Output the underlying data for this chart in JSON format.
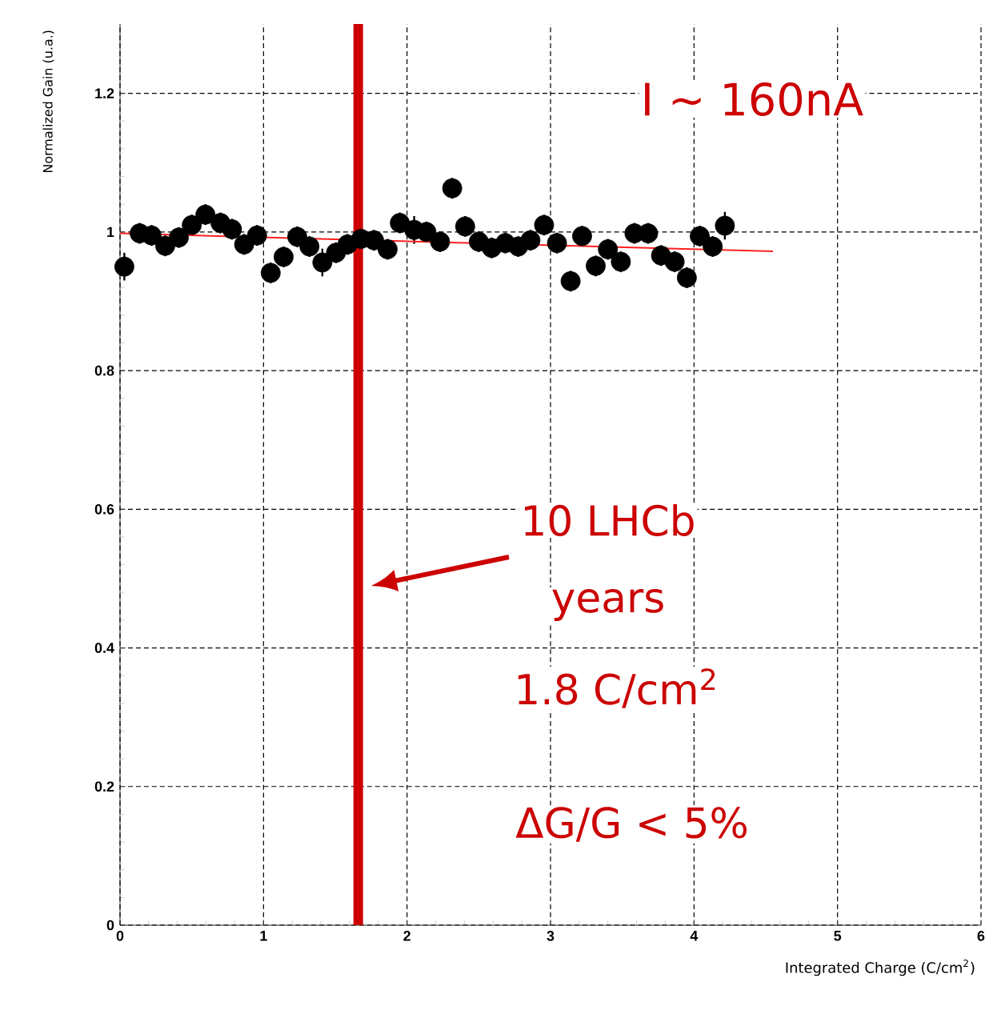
{
  "chart_data": {
    "type": "scatter",
    "xlabel": "Integrated Charge (C/cm$^{2}$)",
    "ylabel": "Normalized Gain (u.a.)",
    "annotations": [
      "I ~ 160nA",
      "10 LHCb",
      "years",
      "1.8 C/cm$^{2}$",
      "ΔG/G < 5%"
    ],
    "series": [
      {
        "color": "#000000",
        "marker": "circle",
        "x": [
          0.03,
          0.137,
          0.22,
          0.315,
          0.41,
          0.5,
          0.595,
          0.7,
          0.78,
          0.865,
          0.955,
          1.05,
          1.14,
          1.235,
          1.32,
          1.41,
          1.505,
          1.585,
          1.68,
          1.77,
          1.865,
          1.95,
          2.05,
          2.135,
          2.23,
          2.315,
          2.405,
          2.5,
          2.59,
          2.685,
          2.775,
          2.86,
          2.955,
          3.045,
          3.14,
          3.22,
          3.315,
          3.4,
          3.49,
          3.585,
          3.68,
          3.77,
          3.865,
          3.95,
          4.04,
          4.13,
          4.215
        ],
        "values": [
          0.95,
          0.998,
          0.995,
          0.98,
          0.992,
          1.01,
          1.025,
          1.013,
          1.004,
          0.982,
          0.995,
          0.941,
          0.964,
          0.993,
          0.979,
          0.956,
          0.97,
          0.982,
          0.99,
          0.988,
          0.975,
          1.013,
          1.003,
          1.0,
          0.986,
          1.063,
          1.008,
          0.986,
          0.977,
          0.984,
          0.979,
          0.988,
          1.01,
          0.984,
          0.929,
          0.994,
          0.951,
          0.975,
          0.957,
          0.998,
          0.998,
          0.966,
          0.957,
          0.934,
          0.994,
          0.979,
          1.009
        ],
        "errors": [
          0.02,
          0.015,
          0.015,
          0.015,
          0.015,
          0.015,
          0.015,
          0.015,
          0.015,
          0.015,
          0.015,
          0.015,
          0.015,
          0.015,
          0.015,
          0.02,
          0.015,
          0.015,
          0.015,
          0.015,
          0.015,
          0.015,
          0.02,
          0.015,
          0.015,
          0.015,
          0.015,
          0.015,
          0.015,
          0.015,
          0.015,
          0.015,
          0.015,
          0.015,
          0.015,
          0.015,
          0.015,
          0.015,
          0.015,
          0.015,
          0.015,
          0.015,
          0.015,
          0.015,
          0.015,
          0.015,
          0.02
        ]
      },
      {
        "type": "line",
        "color": "#ff2020",
        "marker": "none",
        "x": [
          0,
          4.55
        ],
        "values": [
          0.998,
          0.972
        ]
      }
    ],
    "ref_lines": [
      {
        "axis": "x",
        "value": 1.66,
        "color": "#cc0000"
      }
    ],
    "xlim": [
      0,
      6
    ],
    "ylim": [
      0,
      1.3
    ],
    "xticks": [
      0,
      1,
      2,
      3,
      4,
      5,
      6
    ],
    "yticks": [
      0,
      {
        "value": 0.2,
        "label": "0.2"
      },
      {
        "value": 0.4,
        "label": "0.4"
      },
      {
        "value": 0.6,
        "label": "0.6"
      },
      {
        "value": 0.8,
        "label": "0.8"
      },
      1,
      {
        "value": 1.2,
        "label": "1.2"
      }
    ],
    "grid": true
  }
}
